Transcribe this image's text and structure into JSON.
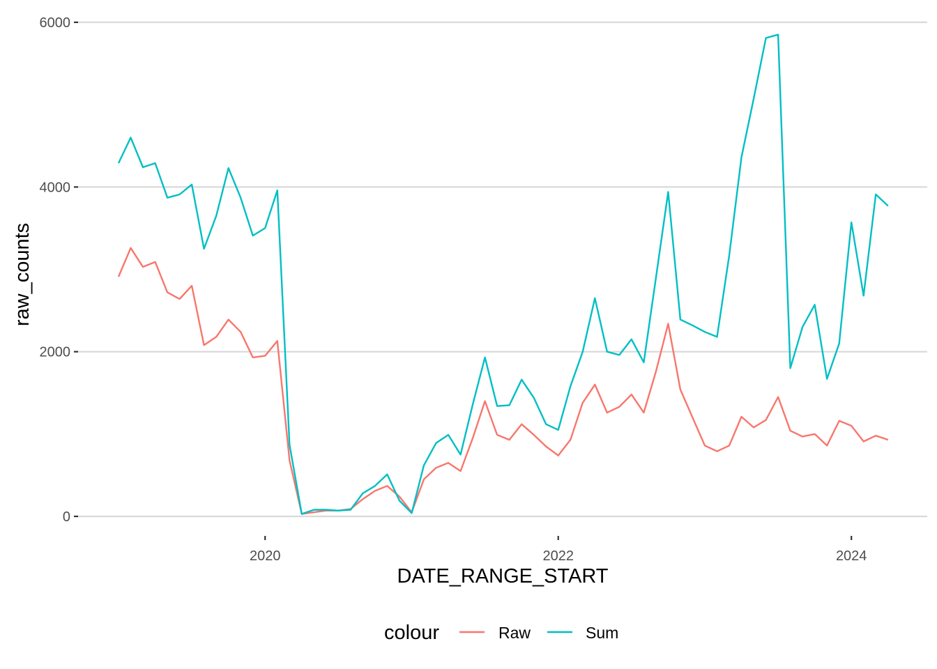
{
  "chart_data": {
    "type": "line",
    "xlabel": "DATE_RANGE_START",
    "ylabel": "raw_counts",
    "legend": {
      "title": "colour",
      "position": "bottom"
    },
    "grid": true,
    "ylim": [
      0,
      6000
    ],
    "yticks": [
      0,
      2000,
      4000,
      6000
    ],
    "xticks": [
      "2020",
      "2022",
      "2024"
    ],
    "x": [
      "2019-01",
      "2019-02",
      "2019-03",
      "2019-04",
      "2019-05",
      "2019-06",
      "2019-07",
      "2019-08",
      "2019-09",
      "2019-10",
      "2019-11",
      "2019-12",
      "2020-01",
      "2020-02",
      "2020-03",
      "2020-04",
      "2020-05",
      "2020-06",
      "2020-07",
      "2020-08",
      "2020-09",
      "2020-10",
      "2020-11",
      "2020-12",
      "2021-01",
      "2021-02",
      "2021-03",
      "2021-04",
      "2021-05",
      "2021-06",
      "2021-07",
      "2021-08",
      "2021-09",
      "2021-10",
      "2021-11",
      "2021-12",
      "2022-01",
      "2022-02",
      "2022-03",
      "2022-04",
      "2022-05",
      "2022-06",
      "2022-07",
      "2022-08",
      "2022-09",
      "2022-10",
      "2022-11",
      "2022-12",
      "2023-01",
      "2023-02",
      "2023-03",
      "2023-04",
      "2023-05",
      "2023-06",
      "2023-07",
      "2023-08",
      "2023-09",
      "2023-10",
      "2023-11",
      "2023-12",
      "2024-01",
      "2024-02",
      "2024-03",
      "2024-04"
    ],
    "series": [
      {
        "name": "Raw",
        "color": "#F8766D",
        "values": [
          2910,
          3260,
          3030,
          3090,
          2720,
          2640,
          2800,
          2080,
          2180,
          2390,
          2240,
          1930,
          1950,
          2130,
          680,
          30,
          50,
          70,
          70,
          90,
          210,
          310,
          370,
          240,
          50,
          450,
          590,
          650,
          550,
          950,
          1400,
          990,
          930,
          1120,
          990,
          850,
          740,
          930,
          1380,
          1600,
          1260,
          1330,
          1480,
          1260,
          1760,
          2340,
          1540,
          1200,
          860,
          790,
          860,
          1210,
          1080,
          1170,
          1450,
          1040,
          970,
          1000,
          860,
          1160,
          1100,
          910,
          980,
          930
        ]
      },
      {
        "name": "Sum",
        "color": "#00BFC4",
        "values": [
          4290,
          4600,
          4240,
          4290,
          3870,
          3910,
          4030,
          3250,
          3650,
          4230,
          3870,
          3410,
          3500,
          3960,
          870,
          30,
          80,
          80,
          70,
          80,
          280,
          370,
          510,
          190,
          40,
          620,
          890,
          990,
          750,
          1360,
          1930,
          1340,
          1350,
          1660,
          1440,
          1120,
          1050,
          1580,
          2000,
          2650,
          2000,
          1960,
          2150,
          1870,
          2900,
          3940,
          2390,
          2320,
          2240,
          2180,
          3170,
          4360,
          5070,
          5810,
          5850,
          1800,
          2300,
          2570,
          1670,
          2100,
          3570,
          2680,
          3910,
          3770
        ]
      }
    ]
  }
}
